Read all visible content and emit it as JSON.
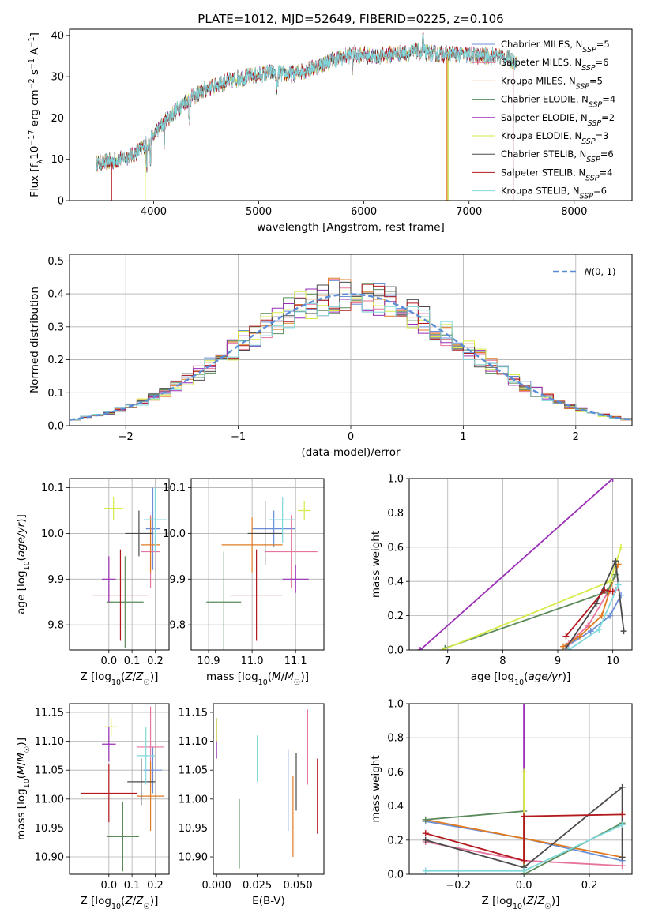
{
  "colors": {
    "Chabrier MILES": "#6b8fd6",
    "Salpeter MILES": "#e7749e",
    "Kroupa MILES": "#e07b22",
    "Chabrier ELODIE": "#5a8a5a",
    "Salpeter ELODIE": "#9a2fb5",
    "Kroupa ELODIE": "#d6ea48",
    "Chabrier STELIB": "#4a4a4a",
    "Salpeter STELIB": "#b2181c",
    "Kroupa STELIB": "#7fd8dc",
    "normal": "#5b8dd6"
  },
  "chart_data": [
    {
      "id": "spectrum",
      "type": "line",
      "title": "PLATE=1012, MJD=52649, FIBERID=0225, z=0.106",
      "xlabel": "wavelength [Angstrom, rest frame]",
      "ylabel": "Flux [f_λ10^-17 erg cm^-2 s^-1 A^-1]",
      "xlim": [
        3200,
        8550
      ],
      "ylim": [
        0,
        41.5
      ],
      "xticks": [
        4000,
        5000,
        6000,
        7000,
        8000
      ],
      "yticks": [
        0,
        10,
        20,
        30,
        40
      ],
      "grid": false,
      "legend_position": "lower-right",
      "series": [
        {
          "name": "Chabrier MILES",
          "nssp": "5"
        },
        {
          "name": "Salpeter MILES",
          "nssp": "6"
        },
        {
          "name": "Kroupa MILES",
          "nssp": "5"
        },
        {
          "name": "Chabrier ELODIE",
          "nssp": "4"
        },
        {
          "name": "Salpeter ELODIE",
          "nssp": "2"
        },
        {
          "name": "Kroupa ELODIE",
          "nssp": "3"
        },
        {
          "name": "Chabrier STELIB",
          "nssp": "6"
        },
        {
          "name": "Salpeter STELIB",
          "nssp": "4"
        },
        {
          "name": "Kroupa STELIB",
          "nssp": "6"
        }
      ],
      "continuum": [
        [
          3450,
          9
        ],
        [
          3600,
          9.5
        ],
        [
          3800,
          11
        ],
        [
          3950,
          14
        ],
        [
          4100,
          19
        ],
        [
          4300,
          24
        ],
        [
          4500,
          27
        ],
        [
          4700,
          29
        ],
        [
          4900,
          30
        ],
        [
          5100,
          31
        ],
        [
          5300,
          30.5
        ],
        [
          5500,
          32
        ],
        [
          5700,
          34
        ],
        [
          5900,
          35.5
        ],
        [
          6100,
          35
        ],
        [
          6300,
          35.5
        ],
        [
          6500,
          36
        ],
        [
          6700,
          35.5
        ],
        [
          6900,
          35.5
        ],
        [
          7100,
          35
        ],
        [
          7300,
          35
        ],
        [
          7500,
          33
        ]
      ],
      "data_start": 3450,
      "data_end": 7450
    },
    {
      "id": "residuals",
      "type": "line",
      "xlabel": "(data-model)/error",
      "ylabel": "Normed distribution",
      "xlim": [
        -2.5,
        2.5
      ],
      "ylim": [
        0,
        0.52
      ],
      "xticks": [
        -2,
        -1,
        0,
        1,
        2
      ],
      "yticks": [
        0.0,
        0.1,
        0.2,
        0.3,
        0.4,
        0.5
      ],
      "grid": true,
      "legend_position": "upper-right",
      "legend_label": "N(0, 1)",
      "bin_width": 0.1
    },
    {
      "id": "age-vs-Z",
      "type": "scatter",
      "xlabel": "Z [log10(Z/Z☉)]",
      "ylabel": "age  [log10(age/yr)]",
      "xlim": [
        -0.17,
        0.26
      ],
      "ylim": [
        9.745,
        10.12
      ],
      "xticks": [
        0.0,
        0.1,
        0.2
      ],
      "yticks": [
        9.8,
        9.9,
        10.0,
        10.1
      ],
      "grid": true,
      "points": [
        {
          "series": "Chabrier MILES",
          "x": 0.19,
          "xerr": 0.03,
          "y": 10.01,
          "yerr": 0.09
        },
        {
          "series": "Salpeter MILES",
          "x": 0.18,
          "xerr": 0.04,
          "y": 9.96,
          "yerr": 0.08
        },
        {
          "series": "Kroupa MILES",
          "x": 0.18,
          "xerr": 0.04,
          "y": 9.975,
          "yerr": 0.06
        },
        {
          "series": "Chabrier ELODIE",
          "x": 0.07,
          "xerr": 0.08,
          "y": 9.85,
          "yerr": 0.1
        },
        {
          "series": "Salpeter ELODIE",
          "x": 0.0,
          "xerr": 0.03,
          "y": 9.9,
          "yerr": 0.05
        },
        {
          "series": "Kroupa ELODIE",
          "x": 0.02,
          "xerr": 0.04,
          "y": 10.055,
          "yerr": 0.025
        },
        {
          "series": "Chabrier STELIB",
          "x": 0.13,
          "xerr": 0.06,
          "y": 10.0,
          "yerr": 0.05
        },
        {
          "series": "Salpeter STELIB",
          "x": 0.05,
          "xerr": 0.12,
          "y": 9.865,
          "yerr": 0.1
        },
        {
          "series": "Kroupa STELIB",
          "x": 0.2,
          "xerr": 0.05,
          "y": 10.03,
          "yerr": 0.07
        }
      ]
    },
    {
      "id": "age-vs-mass",
      "type": "scatter",
      "xlabel": "mass [log10(M/M☉)]",
      "ylabel": "",
      "xlim": [
        10.86,
        11.165
      ],
      "ylim": [
        9.745,
        10.12
      ],
      "xticks": [
        10.9,
        11.0,
        11.1
      ],
      "yticks": [
        9.8,
        9.9,
        10.0,
        10.1
      ],
      "grid": true,
      "points": [
        {
          "series": "Chabrier MILES",
          "x": 11.05,
          "xerr": 0.05,
          "y": 10.01,
          "yerr": 0.04
        },
        {
          "series": "Salpeter MILES",
          "x": 11.09,
          "xerr": 0.06,
          "y": 9.96,
          "yerr": 0.08
        },
        {
          "series": "Kroupa MILES",
          "x": 11.0,
          "xerr": 0.07,
          "y": 9.975,
          "yerr": 0.06
        },
        {
          "series": "Chabrier ELODIE",
          "x": 10.935,
          "xerr": 0.04,
          "y": 9.85,
          "yerr": 0.11
        },
        {
          "series": "Salpeter ELODIE",
          "x": 11.1,
          "xerr": 0.03,
          "y": 9.9,
          "yerr": 0.03
        },
        {
          "series": "Kroupa ELODIE",
          "x": 11.12,
          "xerr": 0.015,
          "y": 10.05,
          "yerr": 0.02
        },
        {
          "series": "Chabrier STELIB",
          "x": 11.03,
          "xerr": 0.04,
          "y": 10.0,
          "yerr": 0.07
        },
        {
          "series": "Salpeter STELIB",
          "x": 11.01,
          "xerr": 0.06,
          "y": 9.865,
          "yerr": 0.1
        },
        {
          "series": "Kroupa STELIB",
          "x": 11.07,
          "xerr": 0.03,
          "y": 10.03,
          "yerr": 0.05
        }
      ]
    },
    {
      "id": "weight-vs-age",
      "type": "line",
      "xlabel": "age  [log10(age/yr)]",
      "ylabel": "mass weight",
      "xlim": [
        6.3,
        10.35
      ],
      "ylim": [
        0,
        1.0
      ],
      "xticks": [
        7,
        8,
        9,
        10
      ],
      "yticks": [
        0.0,
        0.2,
        0.4,
        0.6,
        0.8,
        1.0
      ],
      "grid": true,
      "series": [
        {
          "name": "Chabrier MILES",
          "points": [
            [
              9.15,
              0.02
            ],
            [
              9.6,
              0.11
            ],
            [
              9.95,
              0.2
            ],
            [
              10.15,
              0.32
            ]
          ]
        },
        {
          "name": "Salpeter MILES",
          "points": [
            [
              9.2,
              0.04
            ],
            [
              9.55,
              0.14
            ],
            [
              9.9,
              0.33
            ],
            [
              10.05,
              0.35
            ]
          ]
        },
        {
          "name": "Kroupa MILES",
          "points": [
            [
              9.1,
              0.02
            ],
            [
              9.4,
              0.08
            ],
            [
              9.8,
              0.2
            ],
            [
              10.1,
              0.5
            ]
          ]
        },
        {
          "name": "Chabrier ELODIE",
          "points": [
            [
              6.95,
              0.01
            ],
            [
              9.9,
              0.34
            ],
            [
              10.05,
              0.44
            ]
          ]
        },
        {
          "name": "Salpeter ELODIE",
          "points": [
            [
              6.5,
              0.0
            ],
            [
              10.0,
              1.0
            ]
          ]
        },
        {
          "name": "Kroupa ELODIE",
          "points": [
            [
              6.9,
              0.0
            ],
            [
              9.95,
              0.4
            ],
            [
              10.15,
              0.6
            ]
          ]
        },
        {
          "name": "Chabrier STELIB",
          "points": [
            [
              9.15,
              0.01
            ],
            [
              9.7,
              0.27
            ],
            [
              10.05,
              0.52
            ],
            [
              10.2,
              0.11
            ]
          ]
        },
        {
          "name": "Salpeter STELIB",
          "points": [
            [
              9.15,
              0.08
            ],
            [
              9.85,
              0.35
            ],
            [
              10.0,
              0.34
            ]
          ]
        },
        {
          "name": "Kroupa STELIB",
          "points": [
            [
              9.2,
              0.0
            ],
            [
              9.75,
              0.12
            ],
            [
              10.1,
              0.38
            ]
          ]
        }
      ]
    },
    {
      "id": "mass-vs-Z",
      "type": "scatter",
      "xlabel": "Z [log10(Z/Z☉)]",
      "ylabel": "mass [log10(M/M☉)]",
      "xlim": [
        -0.17,
        0.26
      ],
      "ylim": [
        10.87,
        11.165
      ],
      "xticks": [
        0.0,
        0.1,
        0.2
      ],
      "yticks": [
        10.9,
        10.95,
        11.0,
        11.05,
        11.1,
        11.15
      ],
      "grid": true,
      "points": [
        {
          "series": "Chabrier MILES",
          "x": 0.19,
          "xerr": 0.04,
          "y": 11.05,
          "yerr": 0.04
        },
        {
          "series": "Salpeter MILES",
          "x": 0.18,
          "xerr": 0.06,
          "y": 11.09,
          "yerr": 0.07
        },
        {
          "series": "Kroupa MILES",
          "x": 0.18,
          "xerr": 0.06,
          "y": 11.005,
          "yerr": 0.06
        },
        {
          "series": "Chabrier ELODIE",
          "x": 0.06,
          "xerr": 0.07,
          "y": 10.935,
          "yerr": 0.06
        },
        {
          "series": "Salpeter ELODIE",
          "x": 0.0,
          "xerr": 0.03,
          "y": 11.095,
          "yerr": 0.03
        },
        {
          "series": "Kroupa ELODIE",
          "x": 0.01,
          "xerr": 0.03,
          "y": 11.125,
          "yerr": 0.015
        },
        {
          "series": "Chabrier STELIB",
          "x": 0.14,
          "xerr": 0.06,
          "y": 11.03,
          "yerr": 0.04
        },
        {
          "series": "Salpeter STELIB",
          "x": 0.0,
          "xerr": 0.12,
          "y": 11.01,
          "yerr": 0.05
        },
        {
          "series": "Kroupa STELIB",
          "x": 0.16,
          "xerr": 0.04,
          "y": 11.075,
          "yerr": 0.05
        }
      ]
    },
    {
      "id": "mass-vs-EBV",
      "type": "scatter",
      "xlabel": "E(B-V)",
      "ylabel": "",
      "xlim": [
        -0.002,
        0.066
      ],
      "ylim": [
        10.87,
        11.165
      ],
      "xticks": [
        0.0,
        0.025,
        0.05
      ],
      "xtick_labels": [
        "0.000",
        "0.025",
        "0.050"
      ],
      "yticks": [
        10.9,
        10.95,
        11.0,
        11.05,
        11.1,
        11.15
      ],
      "grid": false,
      "points": [
        {
          "series": "Chabrier MILES",
          "x": 0.044,
          "y": 11.015,
          "yerr": 0.07
        },
        {
          "series": "Salpeter MILES",
          "x": 0.056,
          "y": 11.09,
          "yerr": 0.065
        },
        {
          "series": "Kroupa MILES",
          "x": 0.047,
          "y": 10.97,
          "yerr": 0.07
        },
        {
          "series": "Chabrier ELODIE",
          "x": 0.014,
          "y": 10.94,
          "yerr": 0.06
        },
        {
          "series": "Salpeter ELODIE",
          "x": 0.0,
          "y": 11.105,
          "yerr": 0.035
        },
        {
          "series": "Kroupa ELODIE",
          "x": 0.0,
          "y": 11.12,
          "yerr": 0.02
        },
        {
          "series": "Chabrier STELIB",
          "x": 0.049,
          "y": 11.03,
          "yerr": 0.05
        },
        {
          "series": "Salpeter STELIB",
          "x": 0.062,
          "y": 11.005,
          "yerr": 0.065
        },
        {
          "series": "Kroupa STELIB",
          "x": 0.025,
          "y": 11.07,
          "yerr": 0.04
        }
      ]
    },
    {
      "id": "weight-vs-Z",
      "type": "line",
      "xlabel": "Z [log10(Z/Z☉)]",
      "ylabel": "mass weight",
      "xlim": [
        -0.35,
        0.33
      ],
      "ylim": [
        0,
        1.0
      ],
      "xticks": [
        -0.2,
        0.0,
        0.2
      ],
      "yticks": [
        0.0,
        0.2,
        0.4,
        0.6,
        0.8,
        1.0
      ],
      "grid": true,
      "series": [
        {
          "name": "Chabrier MILES",
          "points": [
            [
              -0.3,
              0.31
            ],
            [
              0.0,
              0.21
            ],
            [
              0.3,
              0.08
            ]
          ]
        },
        {
          "name": "Salpeter MILES",
          "points": [
            [
              -0.3,
              0.19
            ],
            [
              0.0,
              0.08
            ],
            [
              0.3,
              0.05
            ]
          ]
        },
        {
          "name": "Kroupa MILES",
          "points": [
            [
              -0.3,
              0.32
            ],
            [
              0.3,
              0.1
            ]
          ]
        },
        {
          "name": "Chabrier ELODIE",
          "points": [
            [
              -0.3,
              0.32
            ],
            [
              0.0,
              0.37
            ],
            [
              0.0,
              0.0
            ],
            [
              0.3,
              0.3
            ]
          ]
        },
        {
          "name": "Salpeter ELODIE",
          "points": [
            [
              0.0,
              0.0
            ],
            [
              0.0,
              1.0
            ]
          ]
        },
        {
          "name": "Kroupa ELODIE",
          "points": [
            [
              0.0,
              0.0
            ],
            [
              0.0,
              0.6
            ]
          ]
        },
        {
          "name": "Chabrier STELIB",
          "points": [
            [
              -0.3,
              0.2
            ],
            [
              0.0,
              0.04
            ],
            [
              0.3,
              0.51
            ],
            [
              0.3,
              0.1
            ]
          ]
        },
        {
          "name": "Salpeter STELIB",
          "points": [
            [
              -0.3,
              0.24
            ],
            [
              0.0,
              0.08
            ],
            [
              0.0,
              0.34
            ],
            [
              0.3,
              0.35
            ]
          ]
        },
        {
          "name": "Kroupa STELIB",
          "points": [
            [
              -0.3,
              0.02
            ],
            [
              0.0,
              0.02
            ],
            [
              0.3,
              0.29
            ]
          ]
        }
      ]
    }
  ]
}
